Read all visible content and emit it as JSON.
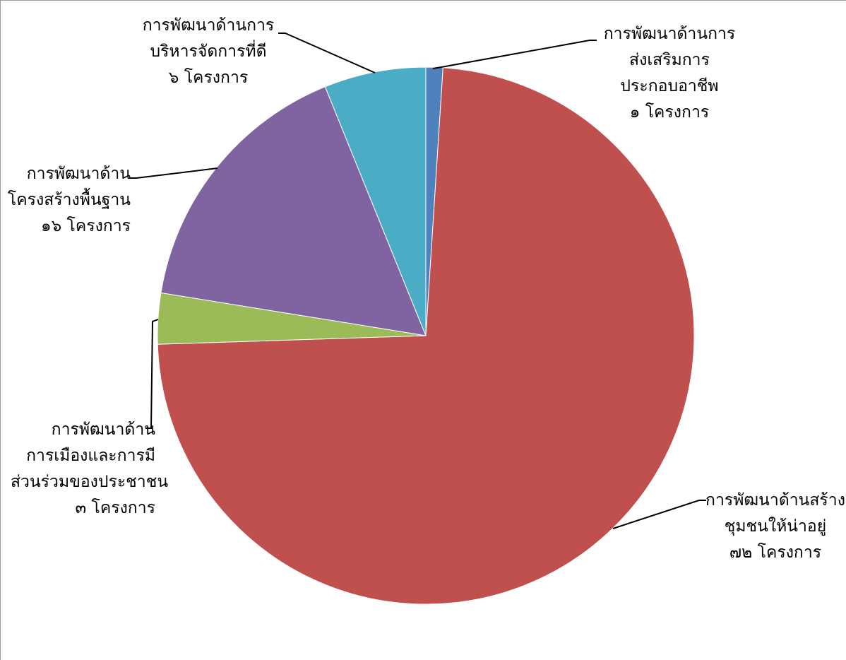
{
  "chart_data": {
    "type": "pie",
    "title": "",
    "slices": [
      {
        "name": "การพัฒนาด้านการส่งเสริมการประกอบอาชีพ",
        "value": 1,
        "color": "#4F81BD",
        "label_lines": [
          "การพัฒนาด้านการ",
          "ส่งเสริมการ",
          "ประกอบอาชีพ",
          "๑ โครงการ"
        ]
      },
      {
        "name": "การพัฒนาด้านสร้างชุมชนให้น่าอยู่",
        "value": 72,
        "color": "#C0504D",
        "label_lines": [
          "การพัฒนาด้านสร้าง",
          "ชุมชนให้น่าอยู่",
          "๗๒ โครงการ"
        ]
      },
      {
        "name": "การพัฒนาด้านการเมืองและการมีส่วนร่วมของประชาชน",
        "value": 3,
        "color": "#9BBB59",
        "label_lines": [
          "การพัฒนาด้าน",
          "การเมืองและการมี",
          "ส่วนร่วมของประชาชน",
          "๓ โครงการ"
        ]
      },
      {
        "name": "การพัฒนาด้านโครงสร้างพื้นฐาน",
        "value": 16,
        "color": "#8064A2",
        "label_lines": [
          "การพัฒนาด้าน",
          "โครงสร้างพื้นฐาน",
          "๑๖ โครงการ"
        ]
      },
      {
        "name": "การพัฒนาด้านการบริหารจัดการที่ดี",
        "value": 6,
        "color": "#4BACC6",
        "label_lines": [
          "การพัฒนาด้านการ",
          "บริหารจัดการที่ดี",
          "๖ โครงการ"
        ]
      }
    ]
  }
}
